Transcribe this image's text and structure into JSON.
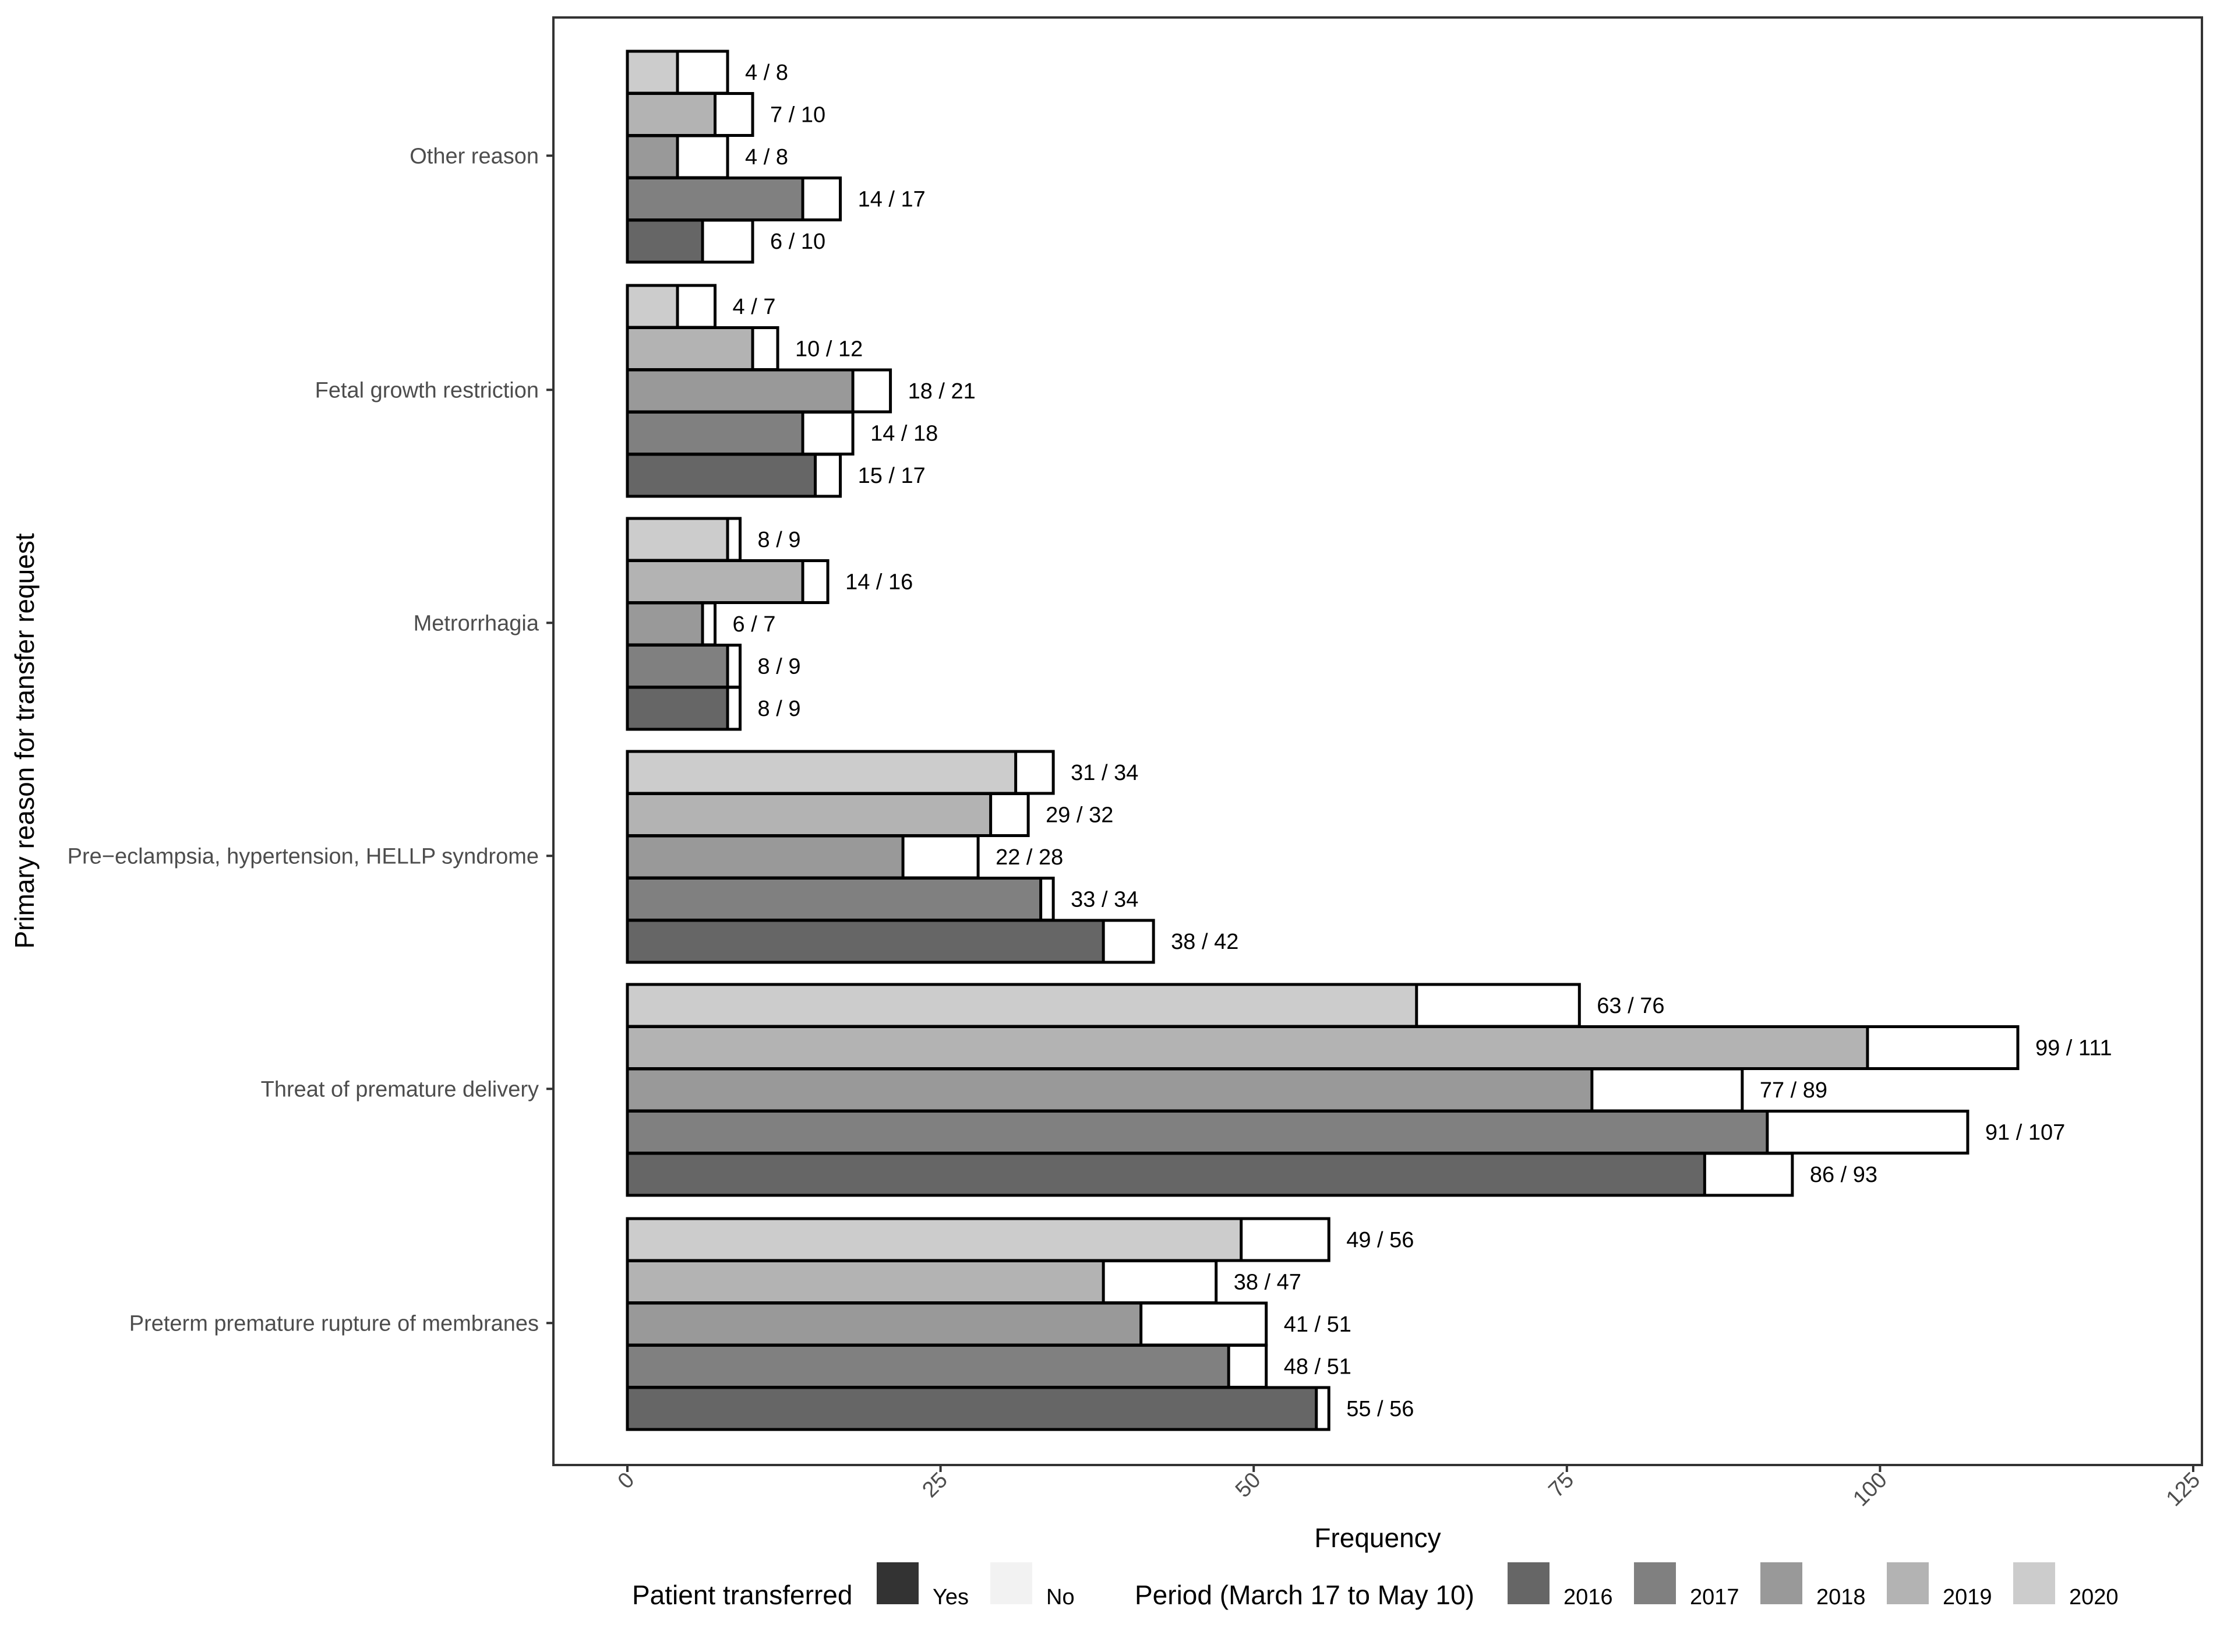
{
  "chart_data": {
    "type": "bar",
    "orientation": "horizontal",
    "xlabel": "Frequency",
    "ylabel": "Primary reason for transfer request",
    "xlim": [
      0,
      125
    ],
    "xticks": [
      0,
      25,
      50,
      75,
      100,
      125
    ],
    "grid": false,
    "periods": [
      "2016",
      "2017",
      "2018",
      "2019",
      "2020"
    ],
    "period_colors": [
      "#666666",
      "#808080",
      "#999999",
      "#b3b3b3",
      "#cccccc"
    ],
    "categories": [
      {
        "name": "Other reason",
        "transferred": [
          6,
          14,
          4,
          7,
          4
        ],
        "total": [
          10,
          17,
          8,
          10,
          8
        ],
        "labels": [
          "6 / 10",
          "14 / 17",
          "4 / 8",
          "7 / 10",
          "4 / 8"
        ]
      },
      {
        "name": "Fetal growth restriction",
        "transferred": [
          15,
          14,
          18,
          10,
          4
        ],
        "total": [
          17,
          18,
          21,
          12,
          7
        ],
        "labels": [
          "15 / 17",
          "14 / 18",
          "18 / 21",
          "10 / 12",
          "4 / 7"
        ]
      },
      {
        "name": "Metrorrhagia",
        "transferred": [
          8,
          8,
          6,
          14,
          8
        ],
        "total": [
          9,
          9,
          7,
          16,
          9
        ],
        "labels": [
          "8 / 9",
          "8 / 9",
          "6 / 7",
          "14 / 16",
          "8 / 9"
        ]
      },
      {
        "name": "Pre−eclampsia, hypertension, HELLP syndrome",
        "transferred": [
          38,
          33,
          22,
          29,
          31
        ],
        "total": [
          42,
          34,
          28,
          32,
          34
        ],
        "labels": [
          "38 / 42",
          "33 / 34",
          "22 / 28",
          "29 / 32",
          "31 / 34"
        ]
      },
      {
        "name": "Threat of premature delivery",
        "transferred": [
          86,
          91,
          77,
          99,
          63
        ],
        "total": [
          93,
          107,
          89,
          111,
          76
        ],
        "labels": [
          "86 / 93",
          "91 / 107",
          "77 / 89",
          "99 / 111",
          "63 / 76"
        ]
      },
      {
        "name": "Preterm premature rupture of membranes",
        "transferred": [
          55,
          48,
          41,
          38,
          49
        ],
        "total": [
          56,
          51,
          51,
          47,
          56
        ],
        "labels": [
          "55 / 56",
          "48 / 51",
          "41 / 51",
          "38 / 47",
          "49 / 56"
        ]
      }
    ],
    "legend": {
      "position": "bottom",
      "transferred_title": "Patient transferred",
      "transferred_items": [
        {
          "label": "Yes",
          "color": "#333333"
        },
        {
          "label": "No",
          "color": "#f2f2f2"
        }
      ],
      "period_title": "Period (March 17 to May 10)",
      "period_items": [
        {
          "label": "2016",
          "color": "#666666"
        },
        {
          "label": "2017",
          "color": "#808080"
        },
        {
          "label": "2018",
          "color": "#999999"
        },
        {
          "label": "2019",
          "color": "#b3b3b3"
        },
        {
          "label": "2020",
          "color": "#cccccc"
        }
      ]
    }
  }
}
